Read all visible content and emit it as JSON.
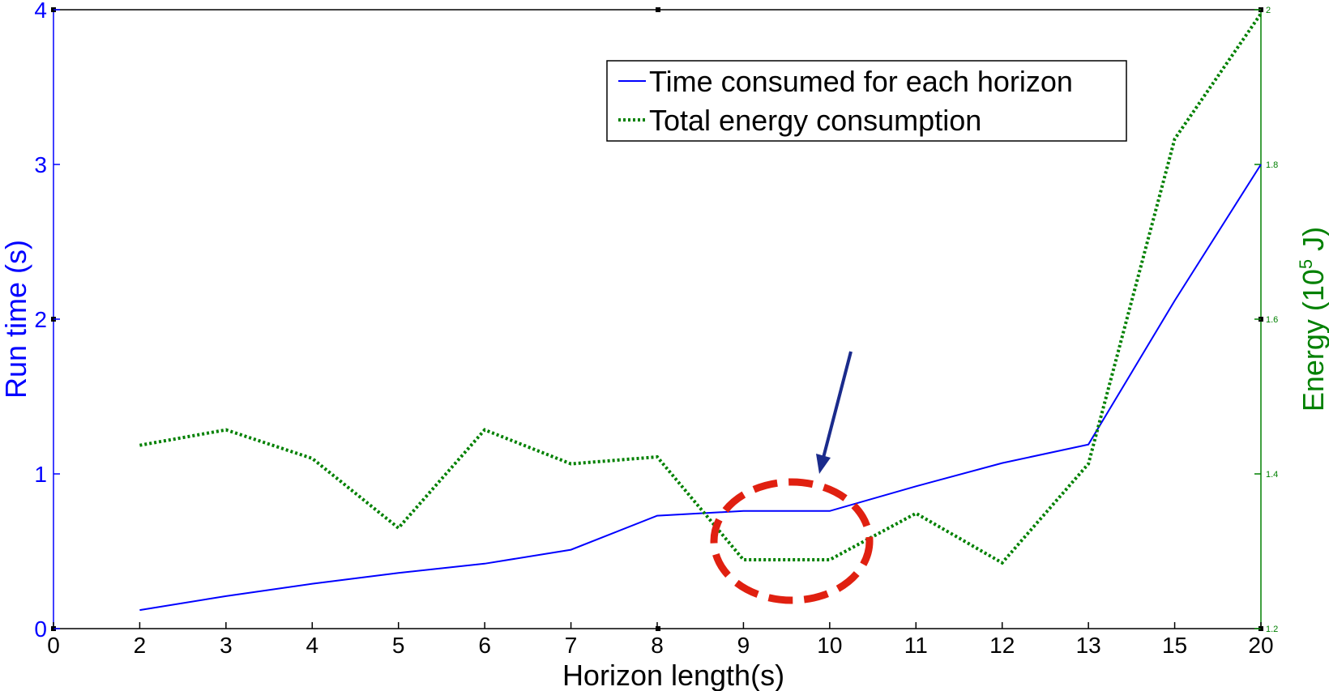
{
  "chart_data": {
    "type": "line",
    "categories": [
      "0",
      "2",
      "3",
      "4",
      "5",
      "6",
      "7",
      "8",
      "9",
      "10",
      "11",
      "12",
      "13",
      "15",
      "20"
    ],
    "xlabel": "Horizon length(s)",
    "ylabel_left": "Run time (s)",
    "ylabel_right": "Energy (10",
    "ylabel_right_sup": "5",
    "ylabel_right_unit": " J)",
    "ylim_left": [
      0,
      4
    ],
    "ylim_right": [
      1.2,
      2.0
    ],
    "left_ticks": [
      "0",
      "1",
      "2",
      "3",
      "4"
    ],
    "right_ticks": [
      "1.2",
      "1.4",
      "1.6",
      "1.8",
      "2"
    ],
    "series": [
      {
        "name": "Time consumed for each horizon",
        "axis": "left",
        "color": "#0000ff",
        "style": "solid",
        "values": [
          null,
          0.12,
          0.21,
          0.29,
          0.36,
          0.42,
          0.51,
          0.73,
          0.76,
          0.76,
          0.92,
          1.07,
          1.19,
          2.12,
          3.0
        ]
      },
      {
        "name": "Total energy consumption",
        "axis": "right",
        "color": "#008000",
        "style": "dotted",
        "values": [
          null,
          1.437,
          1.457,
          1.42,
          1.33,
          1.457,
          1.413,
          1.422,
          1.289,
          1.289,
          1.349,
          1.285,
          1.413,
          1.833,
          1.995
        ]
      }
    ],
    "annotations": [
      {
        "type": "ellipse",
        "color": "#e02010",
        "note": "highlight around horizon 9-10"
      },
      {
        "type": "arrow",
        "color": "#1a2b8c",
        "note": "points at horizon 10"
      }
    ],
    "legend_position": "top-right",
    "grid": false
  }
}
